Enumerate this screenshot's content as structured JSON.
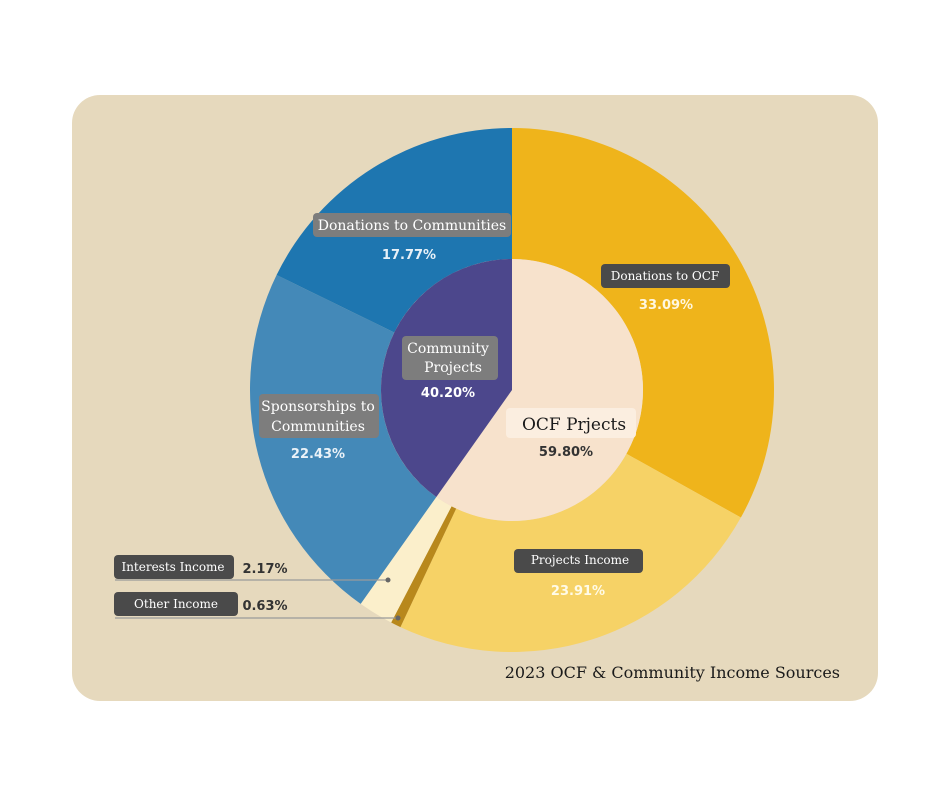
{
  "colors": {
    "background": "#e6d9bd",
    "donations_to_ocf": "#efb41b",
    "projects_income": "#f6d266",
    "other_income": "#b8881c",
    "interests_income": "#fbefcb",
    "sponsorships": "#4489b8",
    "donations_to_communities": "#1e76b0",
    "community_projects_inner": "#4c478c",
    "ocf_projects_inner": "#f7e2cc",
    "label_bg_dark": "#4a4a4a",
    "label_bg_grey": "#7d7d7d"
  },
  "chart_data": {
    "type": "pie",
    "subtitle": "2023 OCF & Community Income Sources",
    "inner": [
      {
        "name": "OCF Prjects",
        "value": 59.8,
        "label": "59.80%"
      },
      {
        "name": "Community Projects",
        "value": 40.2,
        "label": "40.20%"
      }
    ],
    "outer": [
      {
        "name": "Donations to OCF",
        "value": 33.09,
        "label": "33.09%",
        "group": "OCF Prjects"
      },
      {
        "name": "Projects Income",
        "value": 23.91,
        "label": "23.91%",
        "group": "OCF Prjects"
      },
      {
        "name": "Other Income",
        "value": 0.63,
        "label": "0.63%",
        "group": "OCF Prjects"
      },
      {
        "name": "Interests Income",
        "value": 2.17,
        "label": "2.17%",
        "group": "OCF Prjects"
      },
      {
        "name": "Sponsorships to Communities",
        "value": 22.43,
        "label": "22.43%",
        "group": "Community Projects"
      },
      {
        "name": "Donations to Communities",
        "value": 17.77,
        "label": "17.77%",
        "group": "Community Projects"
      }
    ]
  }
}
